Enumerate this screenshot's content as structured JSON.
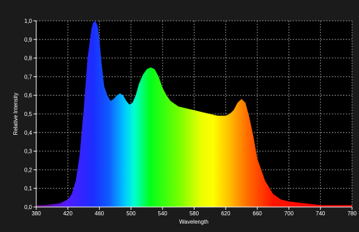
{
  "chart_data": {
    "type": "area",
    "title": "",
    "xlabel": "Wavelength",
    "ylabel": "Relative Intensity",
    "xlim": [
      380,
      780
    ],
    "ylim": [
      0,
      1.0
    ],
    "grid": true,
    "x_ticks": [
      380,
      420,
      460,
      500,
      540,
      580,
      620,
      660,
      700,
      740,
      780
    ],
    "x_tick_labels": [
      "380",
      "420",
      "460",
      "500",
      "540",
      "580",
      "620",
      "660",
      "700",
      "740",
      "780"
    ],
    "y_ticks": [
      0,
      0.1,
      0.2,
      0.3,
      0.4,
      0.5,
      0.6,
      0.7,
      0.8,
      0.9,
      1.0
    ],
    "y_tick_labels": [
      "0,0",
      "0,1",
      "0,2",
      "0,3",
      "0,4",
      "0,5",
      "0,6",
      "0,7",
      "0,8",
      "0,9",
      "1,0"
    ],
    "colors": {
      "background": "#1b1b1b",
      "plot_background": "#000000",
      "grid": "#bdbdbd",
      "text": "#ffffff"
    },
    "series": [
      {
        "x": [
          380,
          390,
          400,
          410,
          420,
          425,
          430,
          435,
          440,
          445,
          450,
          452,
          455,
          458,
          460,
          463,
          466,
          470,
          474,
          478,
          482,
          486,
          490,
          494,
          498,
          502,
          506,
          510,
          515,
          520,
          525,
          530,
          535,
          540,
          545,
          550,
          560,
          570,
          580,
          590,
          600,
          610,
          620,
          625,
          630,
          635,
          640,
          645,
          650,
          655,
          660,
          670,
          680,
          690,
          700,
          720,
          740,
          760,
          780
        ],
        "y": [
          0.01,
          0.01,
          0.015,
          0.02,
          0.04,
          0.07,
          0.14,
          0.28,
          0.52,
          0.8,
          0.96,
          0.99,
          1.0,
          0.97,
          0.9,
          0.76,
          0.65,
          0.6,
          0.57,
          0.58,
          0.6,
          0.61,
          0.6,
          0.57,
          0.55,
          0.56,
          0.6,
          0.66,
          0.71,
          0.74,
          0.75,
          0.74,
          0.7,
          0.64,
          0.6,
          0.57,
          0.54,
          0.53,
          0.52,
          0.51,
          0.5,
          0.49,
          0.49,
          0.5,
          0.52,
          0.56,
          0.58,
          0.56,
          0.48,
          0.38,
          0.26,
          0.14,
          0.07,
          0.04,
          0.03,
          0.02,
          0.01,
          0.01,
          0.01
        ]
      }
    ]
  }
}
